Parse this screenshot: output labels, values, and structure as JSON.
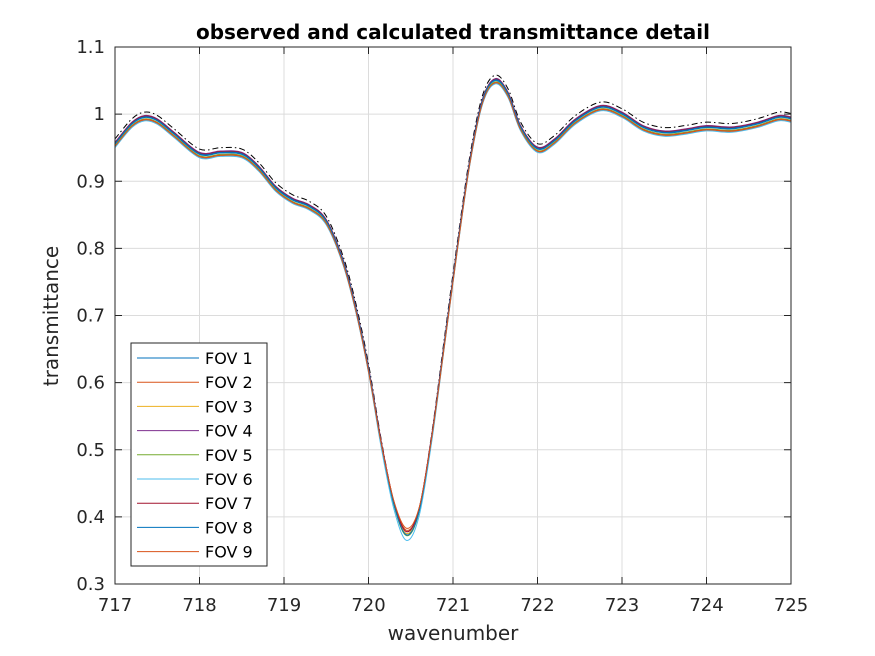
{
  "chart_data": {
    "type": "line",
    "title": "observed and calculated transmittance detail",
    "xlabel": "wavenumber",
    "ylabel": "transmittance",
    "xlim": [
      717,
      725
    ],
    "ylim": [
      0.3,
      1.1
    ],
    "xticks": [
      717,
      718,
      719,
      720,
      721,
      722,
      723,
      724,
      725
    ],
    "yticks": [
      0.3,
      0.4,
      0.5,
      0.6,
      0.7,
      0.8,
      0.9,
      1,
      1.1
    ],
    "xtick_labels": [
      "717",
      "718",
      "719",
      "720",
      "721",
      "722",
      "723",
      "724",
      "725"
    ],
    "ytick_labels": [
      "0.3",
      "0.4",
      "0.5",
      "0.6",
      "0.7",
      "0.8",
      "0.9",
      "1",
      "1.1"
    ],
    "grid": true,
    "legend_position": "bottom-left",
    "x": [
      717.0,
      717.2,
      717.35,
      717.5,
      717.7,
      718.0,
      718.25,
      718.5,
      718.7,
      718.9,
      719.1,
      719.3,
      719.5,
      719.7,
      719.85,
      720.0,
      720.15,
      720.3,
      720.45,
      720.6,
      720.75,
      720.9,
      721.05,
      721.2,
      721.35,
      721.5,
      721.65,
      721.8,
      722.0,
      722.2,
      722.45,
      722.75,
      723.0,
      723.25,
      723.5,
      723.75,
      724.0,
      724.3,
      724.6,
      724.85,
      725.0
    ],
    "base_values": [
      0.955,
      0.985,
      0.995,
      0.99,
      0.97,
      0.94,
      0.942,
      0.94,
      0.92,
      0.89,
      0.872,
      0.862,
      0.84,
      0.78,
      0.71,
      0.62,
      0.51,
      0.42,
      0.375,
      0.41,
      0.52,
      0.66,
      0.8,
      0.93,
      1.02,
      1.05,
      1.03,
      0.98,
      0.948,
      0.96,
      0.99,
      1.01,
      1.0,
      0.98,
      0.972,
      0.975,
      0.98,
      0.978,
      0.985,
      0.995,
      0.993
    ],
    "series": [
      {
        "name": "FOV 1",
        "color": "#0072BD",
        "offset": 0.0,
        "min_offset": 0.0
      },
      {
        "name": "FOV 2",
        "color": "#D95319",
        "offset": -0.004,
        "min_offset": 0.005
      },
      {
        "name": "FOV 3",
        "color": "#EDB120",
        "offset": 0.002,
        "min_offset": 0.0
      },
      {
        "name": "FOV 4",
        "color": "#7E2F8E",
        "offset": 0.003,
        "min_offset": 0.003
      },
      {
        "name": "FOV 5",
        "color": "#77AC30",
        "offset": -0.002,
        "min_offset": -0.003
      },
      {
        "name": "FOV 6",
        "color": "#4DBEEE",
        "offset": -0.005,
        "min_offset": -0.01
      },
      {
        "name": "FOV 7",
        "color": "#A2142F",
        "offset": 0.002,
        "min_offset": 0.003
      },
      {
        "name": "FOV 8",
        "color": "#0072BD",
        "offset": 0.001,
        "min_offset": -0.002
      },
      {
        "name": "FOV 9",
        "color": "#D95319",
        "offset": -0.003,
        "min_offset": 0.008
      }
    ],
    "calculated": {
      "color": "#000000",
      "dash": true,
      "offset": 0.008
    }
  }
}
